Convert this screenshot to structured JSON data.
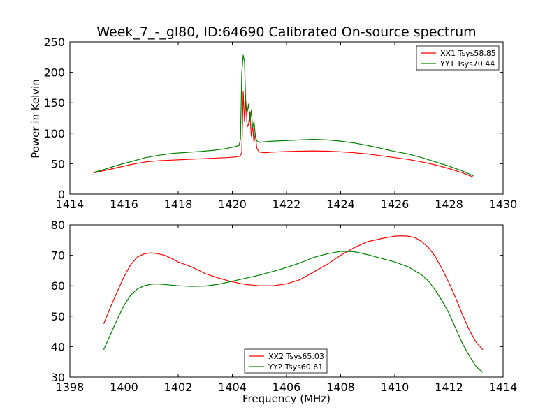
{
  "figure": {
    "title": "Week_7_-_gl80, ID:64690 Calibrated On-source spectrum",
    "xlabel": "Frequency (MHz)",
    "ylabel": "Power in Kelvin"
  },
  "chart_data": [
    {
      "type": "line",
      "title": "Week_7_-_gl80, ID:64690 Calibrated On-source spectrum",
      "xlabel": "",
      "ylabel": "Power in Kelvin",
      "xlim": [
        1414,
        1430
      ],
      "ylim": [
        0,
        250
      ],
      "xticks": [
        1414,
        1416,
        1418,
        1420,
        1422,
        1424,
        1426,
        1428,
        1430
      ],
      "yticks": [
        0,
        50,
        100,
        150,
        200,
        250
      ],
      "legend_position": "top-right",
      "grid": false,
      "series": [
        {
          "name": "XX1 Tsys58.85",
          "color": "#ff0000",
          "x": [
            1414.9,
            1415.3,
            1415.8,
            1416.3,
            1416.8,
            1417.3,
            1417.8,
            1418.3,
            1418.8,
            1419.3,
            1419.8,
            1420.1,
            1420.25,
            1420.3,
            1420.35,
            1420.4,
            1420.45,
            1420.5,
            1420.55,
            1420.6,
            1420.65,
            1420.7,
            1420.75,
            1420.8,
            1420.85,
            1420.9,
            1420.95,
            1421.0,
            1421.2,
            1421.5,
            1422.0,
            1422.5,
            1423.0,
            1423.5,
            1424.0,
            1424.5,
            1425.0,
            1425.5,
            1426.0,
            1426.5,
            1427.0,
            1427.5,
            1428.0,
            1428.5,
            1428.9
          ],
          "y": [
            35,
            39,
            44,
            49,
            53,
            55,
            56,
            57,
            58,
            59,
            60,
            61,
            62,
            64,
            68,
            168,
            120,
            152,
            110,
            115,
            135,
            95,
            112,
            85,
            100,
            76,
            72,
            69,
            68,
            69,
            70,
            70.5,
            71,
            70.5,
            69.5,
            68,
            66,
            63,
            60,
            57,
            53,
            48,
            42,
            35,
            28
          ]
        },
        {
          "name": "YY1 Tsys70.44",
          "color": "#008000",
          "x": [
            1414.9,
            1415.3,
            1415.8,
            1416.3,
            1416.8,
            1417.3,
            1417.8,
            1418.3,
            1418.8,
            1419.3,
            1419.8,
            1420.1,
            1420.25,
            1420.3,
            1420.35,
            1420.4,
            1420.45,
            1420.5,
            1420.55,
            1420.6,
            1420.65,
            1420.7,
            1420.75,
            1420.8,
            1420.85,
            1420.9,
            1420.95,
            1421.0,
            1421.2,
            1421.5,
            1422.0,
            1422.5,
            1423.0,
            1423.5,
            1424.0,
            1424.5,
            1425.0,
            1425.5,
            1426.0,
            1426.5,
            1427.0,
            1427.5,
            1428.0,
            1428.5,
            1428.9
          ],
          "y": [
            36,
            41,
            48,
            54,
            60,
            64,
            67,
            68.5,
            70,
            72,
            75,
            78,
            80,
            90,
            200,
            228,
            218,
            140,
            135,
            148,
            120,
            138,
            108,
            120,
            95,
            88,
            86,
            85,
            86,
            87,
            88,
            89,
            90,
            89,
            87,
            84,
            80,
            75,
            70,
            66,
            60,
            53,
            46,
            38,
            30
          ]
        }
      ]
    },
    {
      "type": "line",
      "title": "",
      "xlabel": "Frequency (MHz)",
      "ylabel": "",
      "xlim": [
        1398,
        1414
      ],
      "ylim": [
        30,
        80
      ],
      "xticks": [
        1398,
        1400,
        1402,
        1404,
        1406,
        1408,
        1410,
        1412,
        1414
      ],
      "yticks": [
        30,
        40,
        50,
        60,
        70,
        80
      ],
      "legend_position": "bottom-center",
      "grid": false,
      "series": [
        {
          "name": "XX2 Tsys65.03",
          "color": "#ff0000",
          "x": [
            1399.25,
            1399.5,
            1399.75,
            1400.0,
            1400.25,
            1400.5,
            1400.75,
            1401.0,
            1401.25,
            1401.5,
            1401.75,
            1402.0,
            1402.5,
            1403.0,
            1403.5,
            1404.0,
            1404.5,
            1405.0,
            1405.5,
            1406.0,
            1406.5,
            1407.0,
            1407.5,
            1408.0,
            1408.5,
            1409.0,
            1409.5,
            1410.0,
            1410.25,
            1410.5,
            1410.75,
            1411.0,
            1411.25,
            1411.5,
            1411.75,
            1412.0,
            1412.25,
            1412.5,
            1412.75,
            1413.0,
            1413.25
          ],
          "y": [
            47.5,
            53,
            58,
            63,
            67,
            69.5,
            70.5,
            70.8,
            70.5,
            70,
            69,
            67.8,
            66.2,
            64,
            62.5,
            61.3,
            60.4,
            60,
            60,
            60.6,
            62,
            64.5,
            67,
            70,
            72.5,
            74.5,
            75.5,
            76.3,
            76.4,
            76.3,
            75.8,
            74.5,
            72.5,
            69.5,
            65.5,
            61,
            56,
            50.5,
            45.5,
            41.5,
            39
          ]
        },
        {
          "name": "YY2 Tsys60.61",
          "color": "#008000",
          "x": [
            1399.25,
            1399.5,
            1399.75,
            1400.0,
            1400.25,
            1400.5,
            1400.75,
            1401.0,
            1401.25,
            1401.5,
            1401.75,
            1402.0,
            1402.5,
            1403.0,
            1403.5,
            1404.0,
            1404.5,
            1405.0,
            1405.5,
            1406.0,
            1406.5,
            1407.0,
            1407.5,
            1408.0,
            1408.5,
            1409.0,
            1409.5,
            1410.0,
            1410.5,
            1411.0,
            1411.25,
            1411.5,
            1411.75,
            1412.0,
            1412.25,
            1412.5,
            1412.75,
            1413.0,
            1413.25
          ],
          "y": [
            39,
            44,
            49,
            53.5,
            57,
            59,
            60,
            60.5,
            60.6,
            60.4,
            60.2,
            60,
            59.8,
            59.9,
            60.5,
            61.5,
            62.5,
            63.5,
            64.7,
            66,
            67.5,
            69.3,
            70.5,
            71.3,
            71.2,
            70.2,
            69,
            67.8,
            66.2,
            63.5,
            61.5,
            58.5,
            55,
            51,
            46,
            41,
            37,
            33.5,
            31.5
          ]
        }
      ]
    }
  ]
}
